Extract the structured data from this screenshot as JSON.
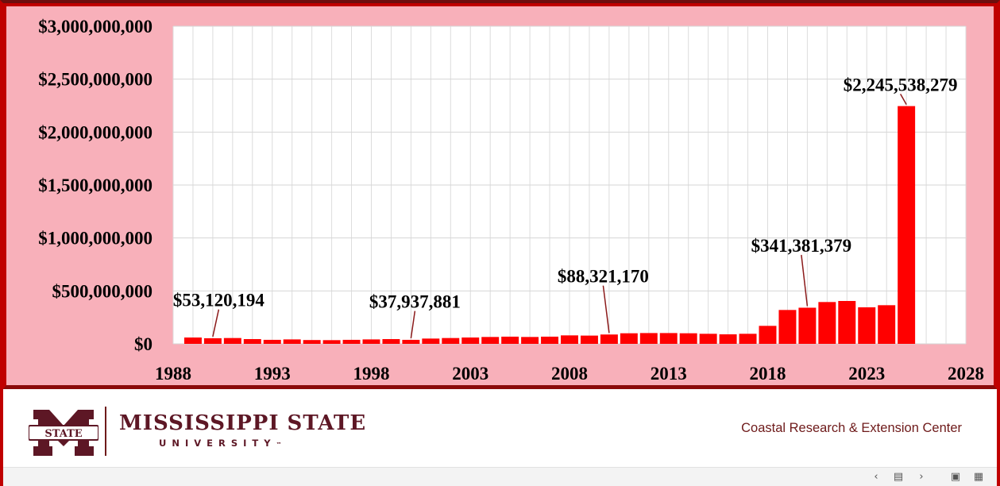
{
  "chart_data": {
    "type": "bar",
    "title": "",
    "xlabel": "",
    "ylabel": "",
    "x": [
      1989,
      1990,
      1991,
      1992,
      1993,
      1994,
      1995,
      1996,
      1997,
      1998,
      1999,
      2000,
      2001,
      2002,
      2003,
      2004,
      2005,
      2006,
      2007,
      2008,
      2009,
      2010,
      2011,
      2012,
      2013,
      2014,
      2015,
      2016,
      2017,
      2018,
      2019,
      2020,
      2021,
      2022,
      2023,
      2024,
      2025
    ],
    "values": [
      60000000,
      53120194,
      55000000,
      45000000,
      38000000,
      42000000,
      36000000,
      35000000,
      38000000,
      42000000,
      45000000,
      37937881,
      50000000,
      55000000,
      60000000,
      65000000,
      68000000,
      65000000,
      68000000,
      80000000,
      78000000,
      88321170,
      100000000,
      102000000,
      102000000,
      100000000,
      95000000,
      90000000,
      95000000,
      170000000,
      320000000,
      341381379,
      395000000,
      405000000,
      345000000,
      365000000,
      2245538279
    ],
    "ylim": [
      0,
      3000000000
    ],
    "xlim": [
      1988,
      2028
    ],
    "y_ticks": [
      0,
      500000000,
      1000000000,
      1500000000,
      2000000000,
      2500000000,
      3000000000
    ],
    "y_tick_labels": [
      "$0",
      "$500,000,000",
      "$1,000,000,000",
      "$1,500,000,000",
      "$2,000,000,000",
      "$2,500,000,000",
      "$3,000,000,000"
    ],
    "x_ticks": [
      1988,
      1993,
      1998,
      2003,
      2008,
      2013,
      2018,
      2023,
      2028
    ],
    "x_tick_labels": [
      "1988",
      "1993",
      "1998",
      "2003",
      "2008",
      "2013",
      "2018",
      "2023",
      "2028"
    ],
    "grid": true,
    "bar_color": "#ff0000",
    "annotations": [
      {
        "year": 1990,
        "value": 53120194,
        "text": "$53,120,194",
        "label_x": 1990.3,
        "label_value": 355000000
      },
      {
        "year": 2000,
        "value": 37937881,
        "text": "$37,937,881",
        "label_x": 2000.2,
        "label_value": 340000000
      },
      {
        "year": 2010,
        "value": 88321170,
        "text": "$88,321,170",
        "label_x": 2009.7,
        "label_value": 580000000
      },
      {
        "year": 2020,
        "value": 341381379,
        "text": "$341,381,379",
        "label_x": 2019.7,
        "label_value": 870000000
      },
      {
        "year": 2025,
        "value": 2245538279,
        "text": "$2,245,538,279",
        "label_x": 2024.7,
        "label_value": 2390000000
      }
    ]
  },
  "footer": {
    "brand_name": "MISSISSIPPI STATE",
    "brand_sub": "UNIVERSITY",
    "brand_tm": "™",
    "logo_text": "STATE",
    "center_name": "Coastal Research & Extension Center"
  },
  "toolbar": {
    "prev_icon": "‹",
    "slide_icon": "▤",
    "next_icon": "›",
    "normal_view_icon": "▣",
    "grid_view_icon": "▦"
  }
}
